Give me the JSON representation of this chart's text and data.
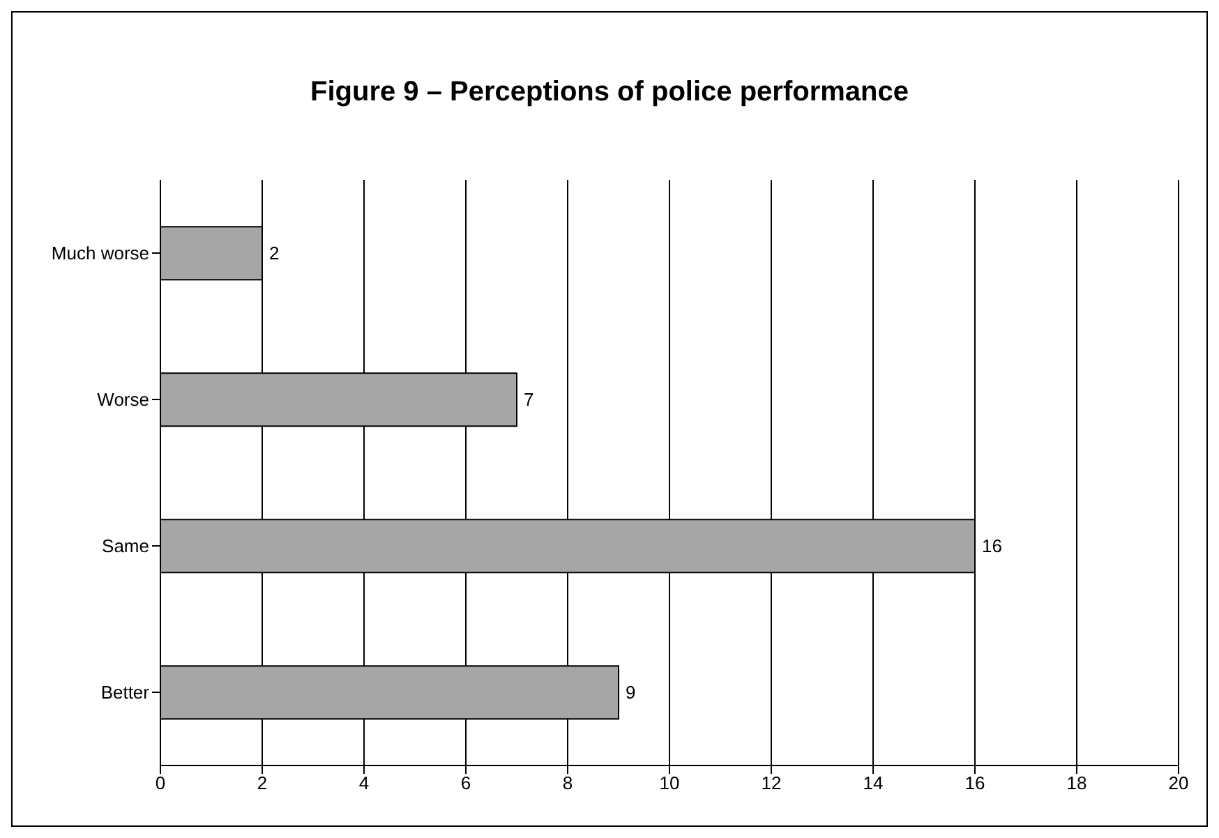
{
  "chart_data": {
    "type": "bar",
    "orientation": "horizontal",
    "title": "Figure 9 – Perceptions of police performance",
    "categories": [
      "Much worse",
      "Worse",
      "Same",
      "Better"
    ],
    "values": [
      2,
      7,
      16,
      9
    ],
    "color": "#a6a6a6",
    "xlim": [
      0,
      20
    ],
    "xticks": [
      0,
      2,
      4,
      6,
      8,
      10,
      12,
      14,
      16,
      18,
      20
    ],
    "grid": "x",
    "data_labels": true
  }
}
